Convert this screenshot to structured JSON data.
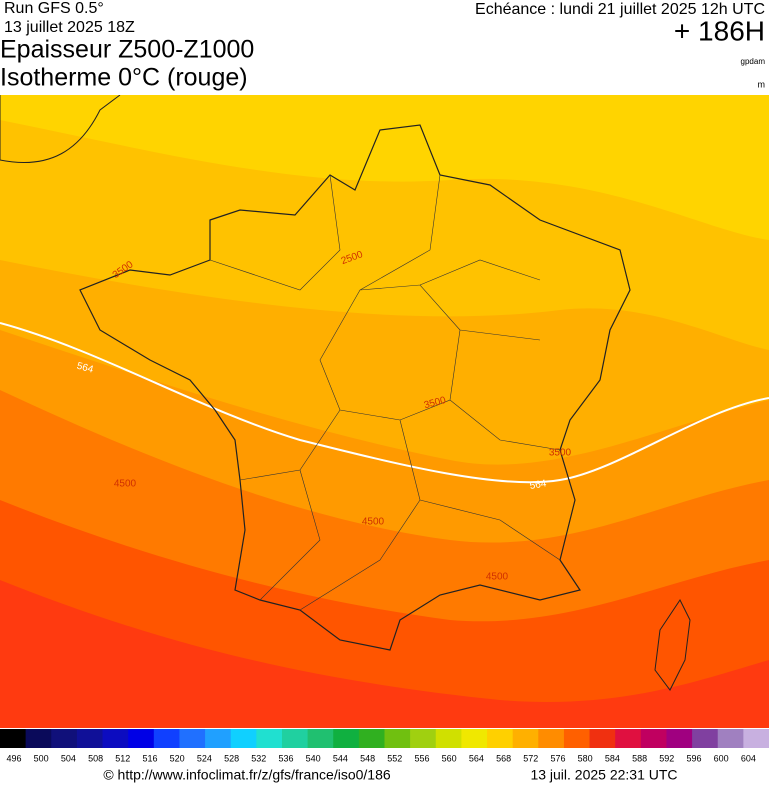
{
  "header": {
    "model": "Run GFS 0.5°",
    "run": "13 juillet 2025 18Z",
    "title1": "Epaisseur Z500-Z1000",
    "title2": "Isotherme 0°C (rouge)",
    "valid": "Echéance : lundi 21 juillet 2025 12h UTC",
    "lead": "+ 186H",
    "unit1": "gpdam",
    "unit2": "m"
  },
  "map": {
    "contour_labels": [
      3500,
      2500,
      564,
      4500,
      3500,
      4500,
      3500,
      564,
      4500
    ]
  },
  "colorbar": {
    "labels": [
      496,
      500,
      504,
      508,
      512,
      516,
      520,
      524,
      528,
      532,
      536,
      540,
      544,
      548,
      552,
      556,
      560,
      564,
      568,
      572,
      576,
      580,
      584,
      588,
      592,
      596,
      600,
      604
    ],
    "colors": [
      "#000000",
      "#0a0a5a",
      "#10107a",
      "#101098",
      "#0c0cc0",
      "#0000e6",
      "#1040ff",
      "#2070ff",
      "#20a0ff",
      "#10d0ff",
      "#20e0d0",
      "#20d0a0",
      "#20c070",
      "#10b040",
      "#30b020",
      "#70c010",
      "#a0d010",
      "#d0e000",
      "#f0e800",
      "#ffd000",
      "#ffb000",
      "#ff8c00",
      "#ff6000",
      "#f03010",
      "#e01040",
      "#c00060",
      "#a00080",
      "#8040a0",
      "#a080c0",
      "#c8b0e0"
    ]
  },
  "footer": {
    "url": "© http://www.infoclimat.fr/z/gfs/france/iso0/186",
    "stamp": "13 juil. 2025 22:31 UTC"
  }
}
